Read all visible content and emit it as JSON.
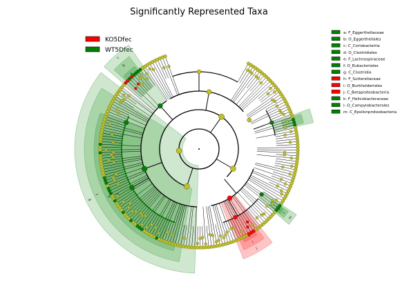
{
  "chart_data": {
    "type": "cladogram",
    "title": "Significantly Represented Taxa",
    "groups": [
      {
        "name": "KO5Dfec",
        "color": "#ff0000"
      },
      {
        "name": "WT5Dfec",
        "color": "#008000"
      }
    ],
    "taxa": [
      {
        "letter": "a",
        "label": "a: F_Eggerthellaceae",
        "group": "WT5Dfec",
        "rank": "family"
      },
      {
        "letter": "b",
        "label": "b: O_Eggerthellales",
        "group": "WT5Dfec",
        "rank": "order"
      },
      {
        "letter": "c",
        "label": "c: C_Coriobacteriia",
        "group": "WT5Dfec",
        "rank": "class"
      },
      {
        "letter": "d",
        "label": "d: O_Clostridiales",
        "group": "WT5Dfec",
        "rank": "order"
      },
      {
        "letter": "e",
        "label": "e: F_Lachnospiraceae",
        "group": "WT5Dfec",
        "rank": "family"
      },
      {
        "letter": "f",
        "label": "f: O_Eubacteriales",
        "group": "WT5Dfec",
        "rank": "order"
      },
      {
        "letter": "g",
        "label": "g: C_Clostridia",
        "group": "WT5Dfec",
        "rank": "class"
      },
      {
        "letter": "h",
        "label": "h: F_Sutterellaceae",
        "group": "KO5Dfec",
        "rank": "family"
      },
      {
        "letter": "i",
        "label": "i: O_Burkholderiales",
        "group": "KO5Dfec",
        "rank": "order"
      },
      {
        "letter": "j",
        "label": "j: C_Betaproteobacteria",
        "group": "KO5Dfec",
        "rank": "class"
      },
      {
        "letter": "k",
        "label": "k: F_Helicobacteraceae",
        "group": "WT5Dfec",
        "rank": "family"
      },
      {
        "letter": "l",
        "label": "l: O_Campylobacterales",
        "group": "WT5Dfec",
        "rank": "order"
      },
      {
        "letter": "m",
        "label": "m: C_Epsilonproteobacteria",
        "group": "WT5Dfec",
        "rank": "class"
      }
    ],
    "colors": {
      "node_default": "#c2c21a",
      "red": "#ff0000",
      "green": "#008000",
      "green_band": "#3a9e3a",
      "red_band": "#ff4040"
    }
  }
}
